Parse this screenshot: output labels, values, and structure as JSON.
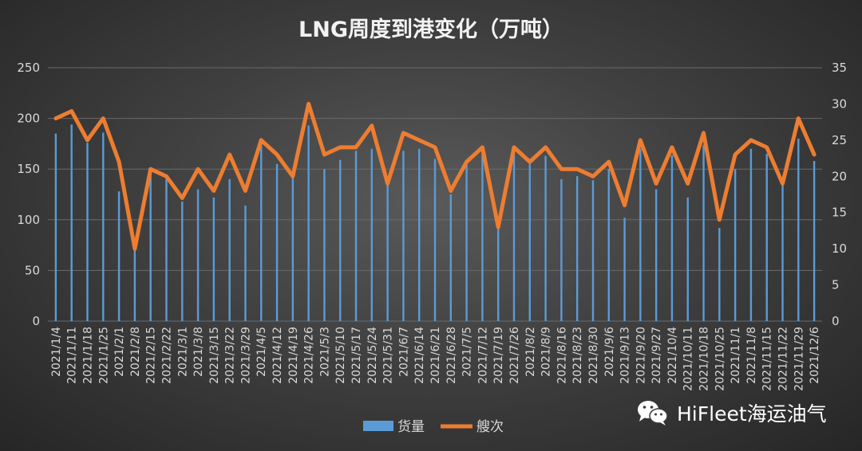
{
  "chart_data": {
    "type": "bar",
    "title": "LNG周度到港变化（万吨）",
    "categories": [
      "2021/1/4",
      "2021/1/11",
      "2021/1/18",
      "2021/1/25",
      "2021/2/1",
      "2021/2/8",
      "2021/2/15",
      "2021/2/22",
      "2021/3/1",
      "2021/3/8",
      "2021/3/15",
      "2021/3/22",
      "2021/3/29",
      "2021/4/5",
      "2021/4/12",
      "2021/4/19",
      "2021/4/26",
      "2021/5/3",
      "2021/5/10",
      "2021/5/17",
      "2021/5/24",
      "2021/5/31",
      "2021/6/7",
      "2021/6/14",
      "2021/6/21",
      "2021/6/28",
      "2021/7/5",
      "2021/7/12",
      "2021/7/19",
      "2021/7/26",
      "2021/8/2",
      "2021/8/9",
      "2021/8/16",
      "2021/8/23",
      "2021/8/30",
      "2021/9/6",
      "2021/9/13",
      "2021/9/20",
      "2021/9/27",
      "2021/10/4",
      "2021/10/11",
      "2021/10/18",
      "2021/10/25",
      "2021/11/1",
      "2021/11/8",
      "2021/11/15",
      "2021/11/22",
      "2021/11/29",
      "2021/12/6"
    ],
    "series": [
      {
        "name": "货量",
        "type": "bar",
        "axis": "left",
        "color": "#5b9bd5",
        "values": [
          185,
          194,
          176,
          186,
          128,
          70,
          150,
          140,
          118,
          130,
          122,
          140,
          114,
          178,
          155,
          142,
          193,
          150,
          159,
          168,
          170,
          135,
          168,
          170,
          160,
          125,
          155,
          165,
          92,
          170,
          155,
          163,
          140,
          143,
          139,
          150,
          102,
          170,
          130,
          164,
          122,
          174,
          92,
          150,
          170,
          165,
          134,
          180,
          158
        ]
      },
      {
        "name": "艘次",
        "type": "line",
        "axis": "right",
        "color": "#ed7d31",
        "values": [
          28,
          29,
          25,
          28,
          22,
          10,
          21,
          20,
          17,
          21,
          18,
          23,
          18,
          25,
          23,
          20,
          30,
          23,
          24,
          24,
          27,
          19,
          26,
          25,
          24,
          18,
          22,
          24,
          13,
          24,
          22,
          24,
          21,
          21,
          20,
          22,
          16,
          25,
          19,
          24,
          19,
          26,
          14,
          23,
          25,
          24,
          19,
          28,
          23
        ]
      }
    ],
    "y_left": {
      "min": 0,
      "max": 250,
      "ticks": [
        0,
        50,
        100,
        150,
        200,
        250
      ]
    },
    "y_right": {
      "min": 0,
      "max": 35,
      "ticks": [
        0,
        5,
        10,
        15,
        20,
        25,
        30,
        35
      ]
    },
    "grid": true,
    "legend_position": "bottom-center"
  },
  "watermark": {
    "text": "HiFleet海运油气",
    "icon": "wechat-icon"
  }
}
